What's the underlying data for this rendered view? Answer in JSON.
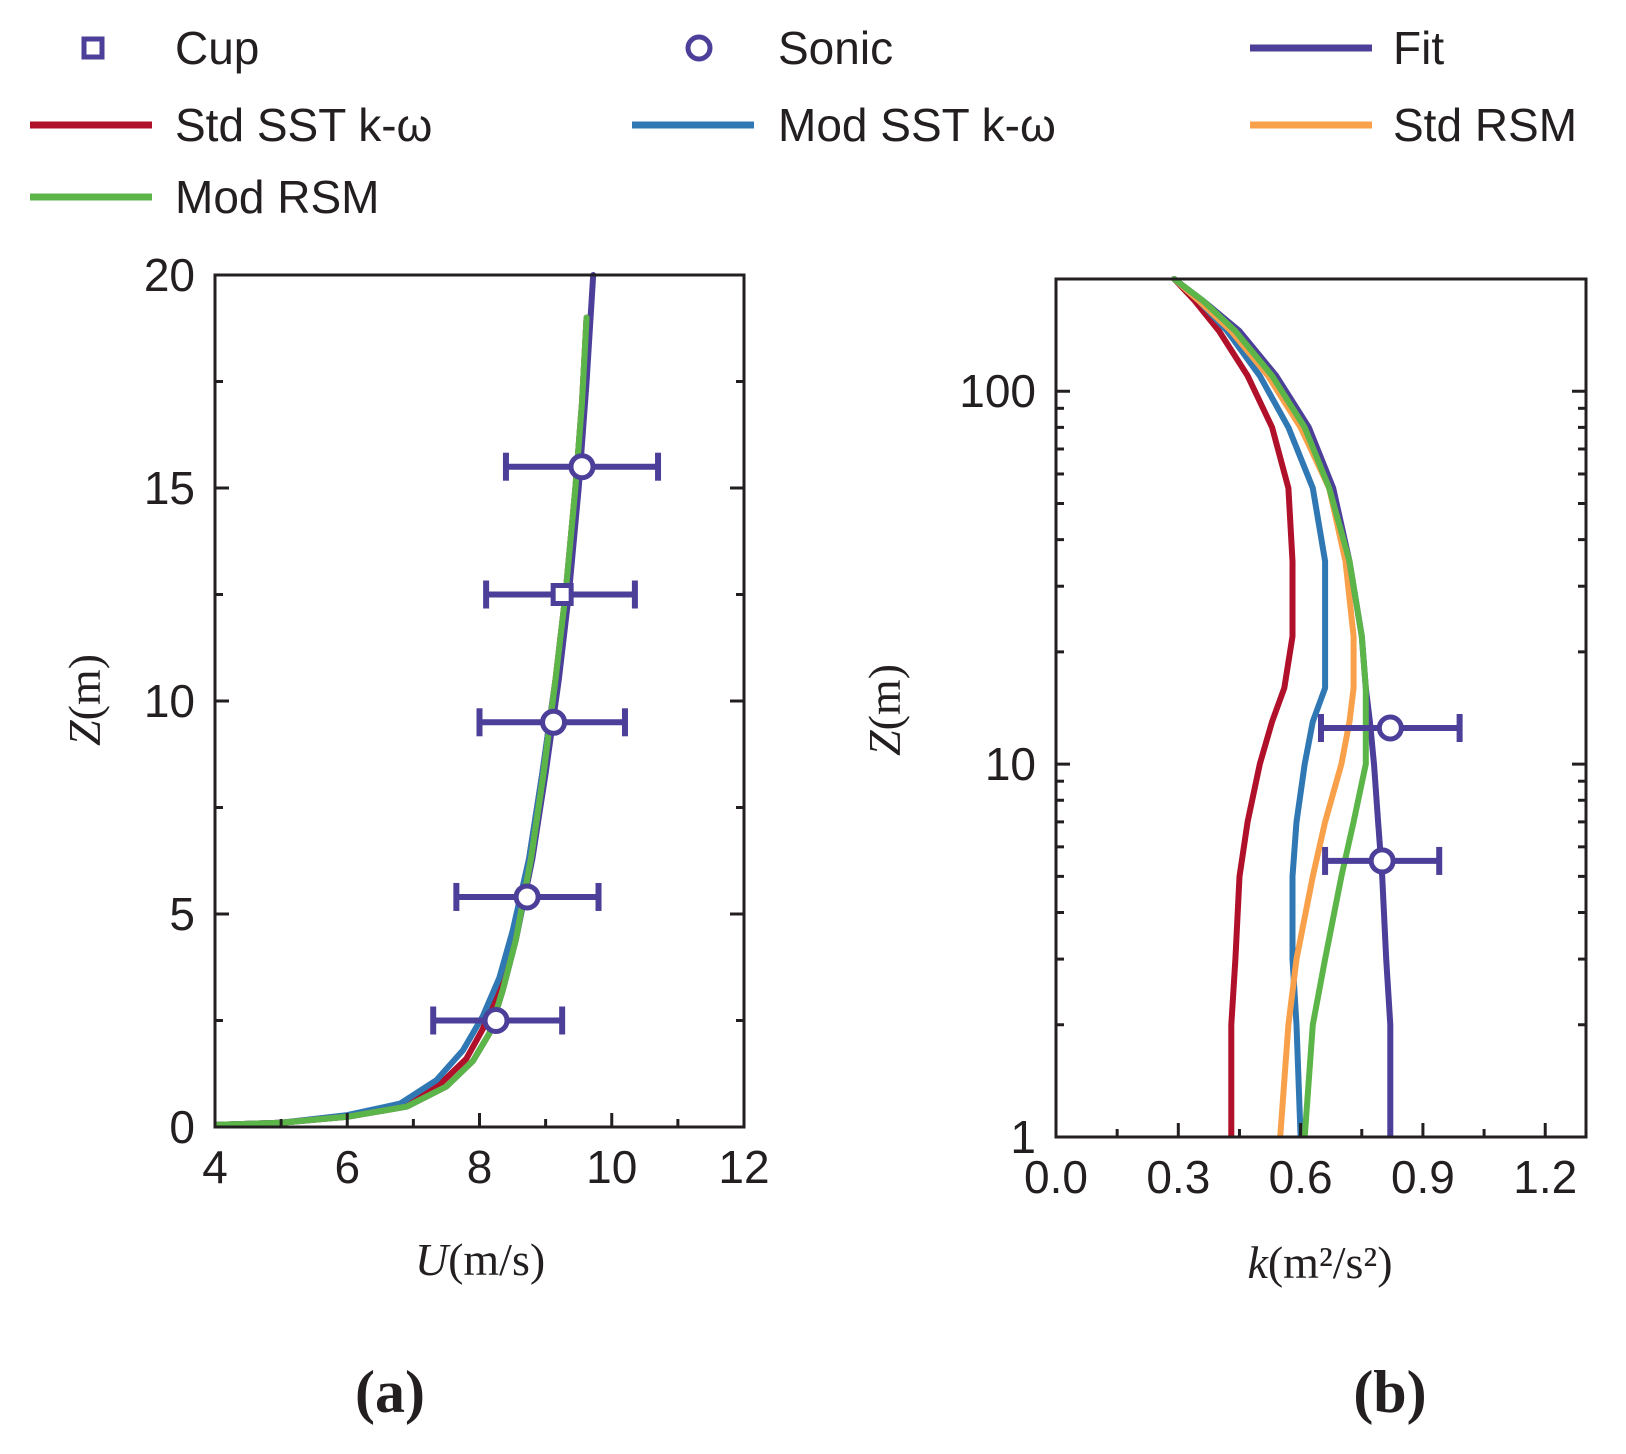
{
  "colors": {
    "measured": "#4b3f9a",
    "fit": "#4b3f9a",
    "std_sst": "#b0102a",
    "mod_sst": "#2f78b4",
    "std_rsm": "#f9a04a",
    "mod_rsm": "#5cb548",
    "axis": "#231f20"
  },
  "legend": [
    {
      "key": "cup",
      "label": "Cup",
      "kind": "square",
      "color": "#4b3f9a"
    },
    {
      "key": "sonic",
      "label": "Sonic",
      "kind": "circle",
      "color": "#4b3f9a"
    },
    {
      "key": "fit",
      "label": "Fit",
      "kind": "line",
      "color": "#4b3f9a"
    },
    {
      "key": "std_sst",
      "label": "Std SST k-ω",
      "kind": "line",
      "color": "#b0102a"
    },
    {
      "key": "mod_sst",
      "label": "Mod SST k-ω",
      "kind": "line",
      "color": "#2f78b4"
    },
    {
      "key": "std_rsm",
      "label": "Std RSM",
      "kind": "line",
      "color": "#f9a04a"
    },
    {
      "key": "mod_rsm",
      "label": "Mod RSM",
      "kind": "line",
      "color": "#5cb548"
    }
  ],
  "chart_data": [
    {
      "panel": "(a)",
      "type": "line",
      "xlabel_var": "U",
      "xlabel_unit": "(m/s)",
      "ylabel_var": "Z",
      "ylabel_unit": "(m)",
      "xlim": [
        4,
        12
      ],
      "ylim": [
        0,
        20
      ],
      "xticks": [
        "4",
        "6",
        "8",
        "10",
        "12"
      ],
      "yticks": [
        "0",
        "5",
        "10",
        "15",
        "20"
      ],
      "series": [
        {
          "name": "Std SST k-ω",
          "color": "#b0102a",
          "x": [
            4.0,
            5.0,
            6.0,
            6.8,
            7.4,
            7.8,
            8.05,
            8.3,
            8.5,
            8.75,
            8.95,
            9.15,
            9.3,
            9.45,
            9.55,
            9.62
          ],
          "y": [
            0.05,
            0.1,
            0.25,
            0.5,
            1.0,
            1.6,
            2.3,
            3.3,
            4.5,
            6.3,
            8.3,
            10.5,
            12.5,
            15.0,
            17.0,
            19.0
          ]
        },
        {
          "name": "Mod SST k-ω",
          "color": "#2f78b4",
          "x": [
            4.0,
            5.0,
            6.0,
            6.8,
            7.35,
            7.75,
            8.05,
            8.3,
            8.5,
            8.75,
            8.95,
            9.15,
            9.3,
            9.45,
            9.55,
            9.62
          ],
          "y": [
            0.05,
            0.1,
            0.28,
            0.55,
            1.1,
            1.8,
            2.6,
            3.5,
            4.6,
            6.3,
            8.3,
            10.5,
            12.5,
            15.0,
            17.0,
            19.0
          ]
        },
        {
          "name": "Std RSM",
          "color": "#f9a04a",
          "x": [
            4.0,
            5.0,
            6.0,
            6.9,
            7.5,
            7.9,
            8.15,
            8.35,
            8.55,
            8.78,
            8.97,
            9.15,
            9.3,
            9.45,
            9.55,
            9.62
          ],
          "y": [
            0.05,
            0.1,
            0.24,
            0.48,
            0.95,
            1.55,
            2.2,
            3.2,
            4.4,
            6.3,
            8.3,
            10.5,
            12.5,
            15.0,
            17.0,
            19.0
          ]
        },
        {
          "name": "Fit",
          "color": "#4b3f9a",
          "x": [
            4.0,
            5.0,
            6.0,
            6.9,
            7.5,
            7.9,
            8.15,
            8.35,
            8.55,
            8.8,
            9.0,
            9.2,
            9.35,
            9.5,
            9.62,
            9.72
          ],
          "y": [
            0.05,
            0.1,
            0.24,
            0.48,
            0.95,
            1.55,
            2.2,
            3.2,
            4.4,
            6.3,
            8.3,
            10.5,
            12.5,
            15.0,
            17.5,
            20.0
          ]
        },
        {
          "name": "Mod RSM",
          "color": "#5cb548",
          "x": [
            4.0,
            5.0,
            6.0,
            6.9,
            7.5,
            7.9,
            8.15,
            8.35,
            8.55,
            8.78,
            8.97,
            9.15,
            9.3,
            9.45,
            9.55,
            9.62
          ],
          "y": [
            0.05,
            0.1,
            0.24,
            0.48,
            0.95,
            1.55,
            2.2,
            3.2,
            4.4,
            6.3,
            8.3,
            10.5,
            12.5,
            15.0,
            17.0,
            19.0
          ]
        }
      ],
      "points": [
        {
          "series": "Sonic",
          "marker": "circle",
          "x": 8.25,
          "y": 2.5,
          "xerr_low": 7.3,
          "xerr_high": 9.25
        },
        {
          "series": "Sonic",
          "marker": "circle",
          "x": 8.72,
          "y": 5.4,
          "xerr_low": 7.65,
          "xerr_high": 9.8
        },
        {
          "series": "Sonic",
          "marker": "circle",
          "x": 9.12,
          "y": 9.5,
          "xerr_low": 8.0,
          "xerr_high": 10.2
        },
        {
          "series": "Cup",
          "marker": "square",
          "x": 9.25,
          "y": 12.5,
          "xerr_low": 8.1,
          "xerr_high": 10.35
        },
        {
          "series": "Sonic",
          "marker": "circle",
          "x": 9.55,
          "y": 15.5,
          "xerr_low": 8.4,
          "xerr_high": 10.7
        }
      ]
    },
    {
      "panel": "(b)",
      "type": "line",
      "xlabel_var": "k",
      "xlabel_unit": "(m²/s²)",
      "ylabel_var": "Z",
      "ylabel_unit": "(m)",
      "xscale": "linear",
      "yscale": "log",
      "xlim": [
        0.0,
        1.3
      ],
      "ylim": [
        1,
        200
      ],
      "xticks": [
        "0.0",
        "0.3",
        "0.6",
        "0.9",
        "1.2"
      ],
      "yticks": [
        "1",
        "10",
        "100"
      ],
      "series": [
        {
          "name": "Std SST k-ω",
          "color": "#b0102a",
          "x": [
            0.43,
            0.43,
            0.44,
            0.45,
            0.47,
            0.5,
            0.53,
            0.56,
            0.58,
            0.58,
            0.57,
            0.53,
            0.47,
            0.4,
            0.34,
            0.29
          ],
          "y": [
            1,
            2,
            3,
            5,
            7,
            10,
            13,
            16,
            22,
            35,
            55,
            80,
            110,
            145,
            175,
            200
          ]
        },
        {
          "name": "Mod SST k-ω",
          "color": "#2f78b4",
          "x": [
            0.6,
            0.59,
            0.58,
            0.58,
            0.59,
            0.61,
            0.63,
            0.66,
            0.66,
            0.66,
            0.63,
            0.57,
            0.5,
            0.42,
            0.35,
            0.29
          ],
          "y": [
            1,
            2,
            3,
            5,
            7,
            10,
            13,
            16,
            22,
            35,
            55,
            80,
            110,
            145,
            175,
            200
          ]
        },
        {
          "name": "Std RSM",
          "color": "#f9a04a",
          "x": [
            0.55,
            0.57,
            0.59,
            0.63,
            0.66,
            0.7,
            0.72,
            0.73,
            0.73,
            0.71,
            0.67,
            0.6,
            0.52,
            0.43,
            0.35,
            0.29
          ],
          "y": [
            1,
            2,
            3,
            5,
            7,
            10,
            13,
            16,
            22,
            35,
            55,
            80,
            110,
            145,
            175,
            200
          ]
        },
        {
          "name": "Fit",
          "color": "#4b3f9a",
          "x": [
            0.82,
            0.82,
            0.81,
            0.8,
            0.79,
            0.78,
            0.77,
            0.76,
            0.75,
            0.72,
            0.68,
            0.62,
            0.54,
            0.45,
            0.36,
            0.29
          ],
          "y": [
            1,
            2,
            3,
            5,
            7,
            10,
            13,
            16,
            22,
            35,
            55,
            80,
            110,
            145,
            175,
            200
          ]
        },
        {
          "name": "Mod RSM",
          "color": "#5cb548",
          "x": [
            0.61,
            0.63,
            0.66,
            0.7,
            0.73,
            0.76,
            0.76,
            0.76,
            0.75,
            0.72,
            0.67,
            0.61,
            0.53,
            0.44,
            0.36,
            0.29
          ],
          "y": [
            1,
            2,
            3,
            5,
            7,
            10,
            13,
            16,
            22,
            35,
            55,
            80,
            110,
            145,
            175,
            200
          ]
        }
      ],
      "points": [
        {
          "series": "Sonic",
          "marker": "circle",
          "x": 0.8,
          "y": 5.5,
          "xerr_low": 0.66,
          "xerr_high": 0.94
        },
        {
          "series": "Sonic",
          "marker": "circle",
          "x": 0.82,
          "y": 12.5,
          "xerr_low": 0.65,
          "xerr_high": 0.99
        }
      ]
    }
  ]
}
